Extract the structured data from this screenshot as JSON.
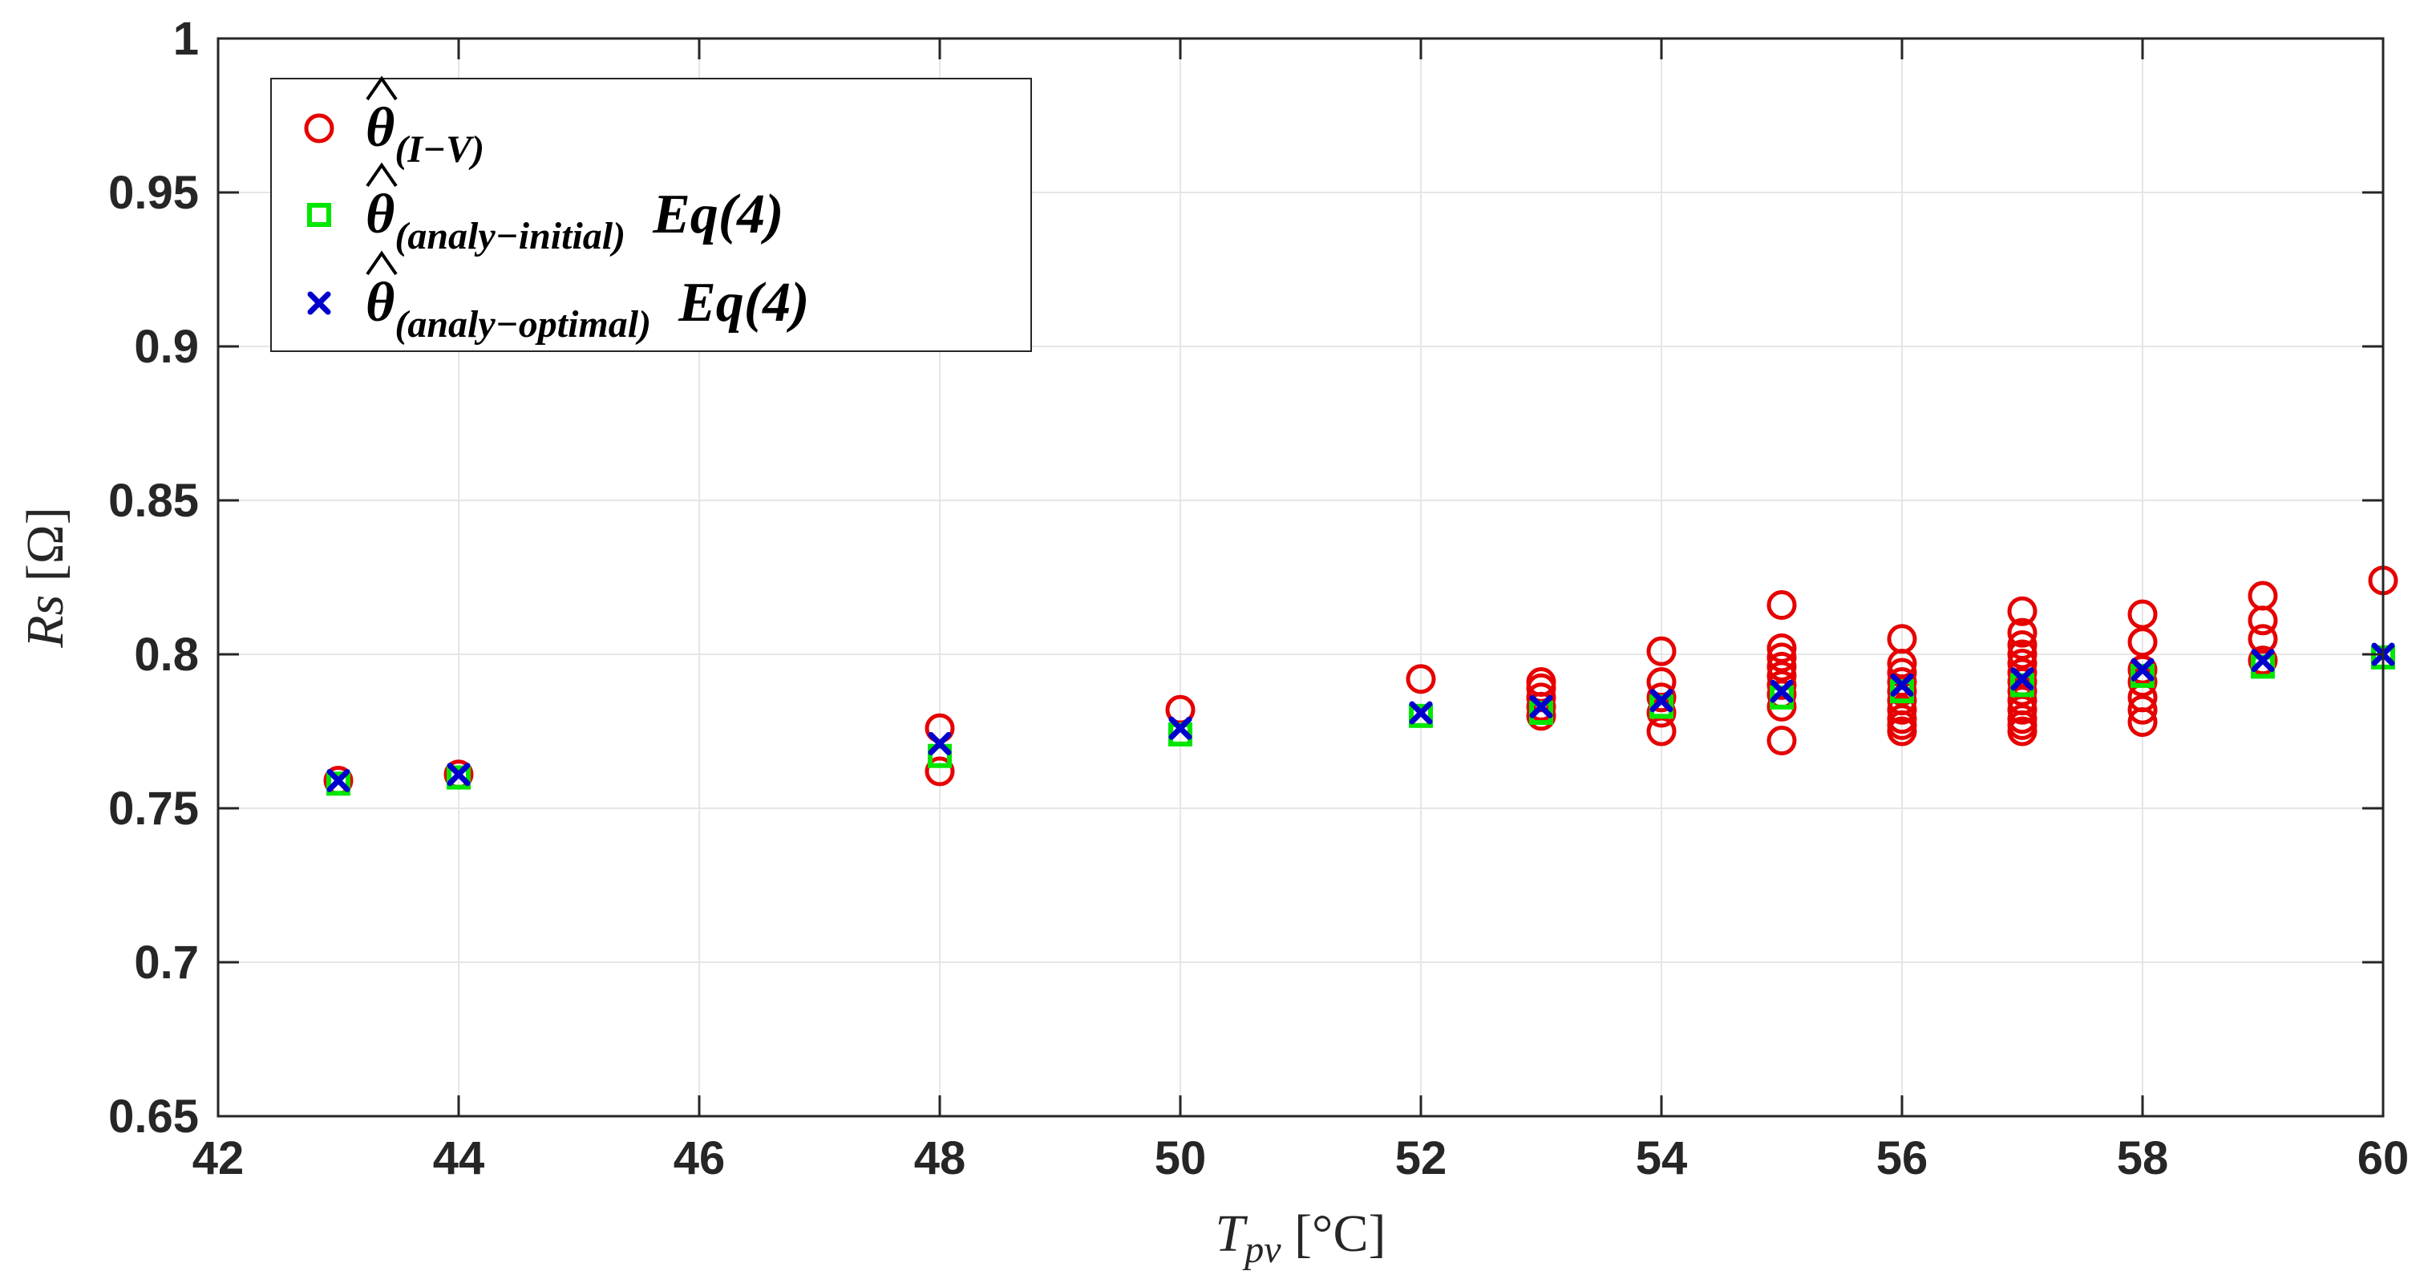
{
  "chart_data": {
    "type": "scatter",
    "title": "",
    "xlabel": "T",
    "xlabel_sub": "pv",
    "xlabel_unit": " [°C]",
    "ylabel": "Rs",
    "ylabel_unit": " [Ω]",
    "xlim": [
      42,
      60
    ],
    "ylim": [
      0.65,
      1
    ],
    "xticks": [
      "42",
      "44",
      "46",
      "48",
      "50",
      "52",
      "54",
      "56",
      "58",
      "60"
    ],
    "yticks": [
      "0.65",
      "0.7",
      "0.75",
      "0.8",
      "0.85",
      "0.9",
      "0.95",
      "1"
    ],
    "grid": true,
    "legend_position": "top-left",
    "series": [
      {
        "name": "θ̂(I−V)",
        "legend_main": "θ",
        "legend_sub": "(I−V)",
        "legend_suffix": "",
        "marker": "circle",
        "color": "#e60000",
        "points": [
          [
            43,
            0.759
          ],
          [
            44,
            0.761
          ],
          [
            48,
            0.762
          ],
          [
            48,
            0.776
          ],
          [
            50,
            0.782
          ],
          [
            52,
            0.792
          ],
          [
            53,
            0.78
          ],
          [
            53,
            0.783
          ],
          [
            53,
            0.786
          ],
          [
            53,
            0.789
          ],
          [
            53,
            0.791
          ],
          [
            54,
            0.775
          ],
          [
            54,
            0.781
          ],
          [
            54,
            0.786
          ],
          [
            54,
            0.791
          ],
          [
            54,
            0.801
          ],
          [
            55,
            0.772
          ],
          [
            55,
            0.783
          ],
          [
            55,
            0.787
          ],
          [
            55,
            0.79
          ],
          [
            55,
            0.793
          ],
          [
            55,
            0.796
          ],
          [
            55,
            0.799
          ],
          [
            55,
            0.802
          ],
          [
            55,
            0.816
          ],
          [
            56,
            0.775
          ],
          [
            56,
            0.777
          ],
          [
            56,
            0.779
          ],
          [
            56,
            0.782
          ],
          [
            56,
            0.785
          ],
          [
            56,
            0.788
          ],
          [
            56,
            0.791
          ],
          [
            56,
            0.794
          ],
          [
            56,
            0.797
          ],
          [
            56,
            0.805
          ],
          [
            57,
            0.775
          ],
          [
            57,
            0.777
          ],
          [
            57,
            0.779
          ],
          [
            57,
            0.782
          ],
          [
            57,
            0.785
          ],
          [
            57,
            0.788
          ],
          [
            57,
            0.791
          ],
          [
            57,
            0.794
          ],
          [
            57,
            0.797
          ],
          [
            57,
            0.8
          ],
          [
            57,
            0.803
          ],
          [
            57,
            0.807
          ],
          [
            57,
            0.814
          ],
          [
            58,
            0.778
          ],
          [
            58,
            0.782
          ],
          [
            58,
            0.786
          ],
          [
            58,
            0.791
          ],
          [
            58,
            0.795
          ],
          [
            58,
            0.804
          ],
          [
            58,
            0.813
          ],
          [
            59,
            0.798
          ],
          [
            59,
            0.805
          ],
          [
            59,
            0.811
          ],
          [
            59,
            0.819
          ],
          [
            60,
            0.824
          ]
        ]
      },
      {
        "name": "θ̂(analy−initial) Eq(4)",
        "legend_main": "θ",
        "legend_sub": "(analy−initial)",
        "legend_suffix": "Eq(4)",
        "marker": "square",
        "color": "#00e600",
        "points": [
          [
            43,
            0.758
          ],
          [
            44,
            0.76
          ],
          [
            48,
            0.767
          ],
          [
            50,
            0.774
          ],
          [
            52,
            0.78
          ],
          [
            53,
            0.781
          ],
          [
            54,
            0.783
          ],
          [
            55,
            0.786
          ],
          [
            56,
            0.788
          ],
          [
            57,
            0.79
          ],
          [
            58,
            0.793
          ],
          [
            59,
            0.796
          ],
          [
            60,
            0.799
          ]
        ]
      },
      {
        "name": "θ̂(analy−optimal) Eq(4)",
        "legend_main": "θ",
        "legend_sub": "(analy−optimal)",
        "legend_suffix": "Eq(4)",
        "marker": "x",
        "color": "#0000cc",
        "points": [
          [
            43,
            0.759
          ],
          [
            44,
            0.761
          ],
          [
            48,
            0.771
          ],
          [
            50,
            0.776
          ],
          [
            52,
            0.781
          ],
          [
            53,
            0.783
          ],
          [
            54,
            0.785
          ],
          [
            55,
            0.788
          ],
          [
            56,
            0.79
          ],
          [
            57,
            0.792
          ],
          [
            58,
            0.795
          ],
          [
            59,
            0.798
          ],
          [
            60,
            0.8
          ]
        ]
      }
    ]
  }
}
